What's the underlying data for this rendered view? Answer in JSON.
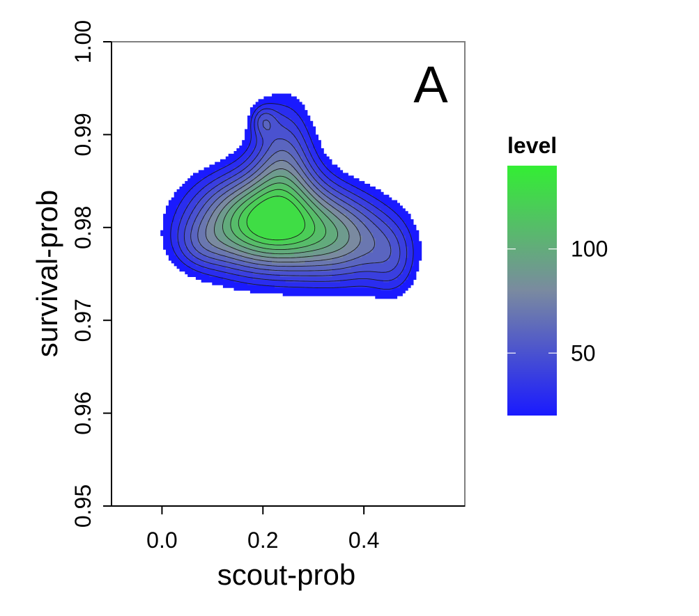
{
  "chart_data": {
    "type": "density2d",
    "panel_label": "A",
    "xlabel": "scout-prob",
    "ylabel": "survival-prob",
    "xlim": [
      -0.1,
      0.6
    ],
    "ylim": [
      0.95,
      1.0
    ],
    "x_ticks": [
      {
        "value": 0.0,
        "label": "0.0"
      },
      {
        "value": 0.2,
        "label": "0.2"
      },
      {
        "value": 0.4,
        "label": "0.4"
      }
    ],
    "y_ticks": [
      {
        "value": 0.95,
        "label": "0.95"
      },
      {
        "value": 0.96,
        "label": "0.96"
      },
      {
        "value": 0.97,
        "label": "0.97"
      },
      {
        "value": 0.98,
        "label": "0.98"
      },
      {
        "value": 0.99,
        "label": "0.99"
      },
      {
        "value": 1.0,
        "label": "1.00"
      }
    ],
    "legend": {
      "title": "level",
      "min": 20,
      "max": 140,
      "low_color": "#1a1aff",
      "mid_color": "#7a8aa0",
      "high_color": "#33ee33",
      "ticks": [
        {
          "value": 50,
          "label": "50"
        },
        {
          "value": 100,
          "label": "100"
        }
      ],
      "placement": "right"
    },
    "levels": [
      20,
      30,
      40,
      50,
      60,
      70,
      80,
      90,
      100,
      110,
      120,
      130
    ],
    "peaks": [
      {
        "x": 0.2,
        "y": 0.9805,
        "sx": 0.1,
        "sy": 0.0038,
        "amp": 130
      },
      {
        "x": 0.24,
        "y": 0.988,
        "sx": 0.045,
        "sy": 0.0045,
        "amp": 55
      },
      {
        "x": 0.37,
        "y": 0.9785,
        "sx": 0.08,
        "sy": 0.0035,
        "amp": 62
      },
      {
        "x": 0.46,
        "y": 0.976,
        "sx": 0.035,
        "sy": 0.003,
        "amp": 25
      },
      {
        "x": 0.2,
        "y": 0.9915,
        "sx": 0.018,
        "sy": 0.0012,
        "amp": 30
      },
      {
        "x": 0.07,
        "y": 0.978,
        "sx": 0.04,
        "sy": 0.002,
        "amp": 20
      }
    ]
  }
}
